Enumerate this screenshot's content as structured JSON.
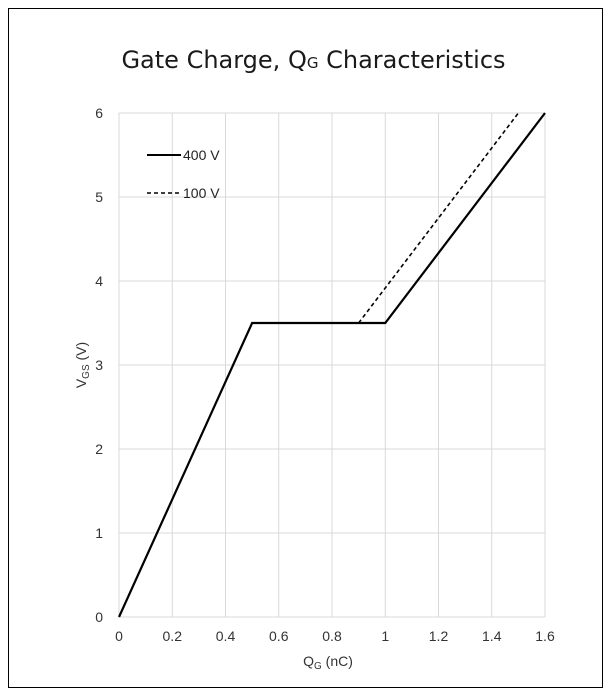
{
  "chart_data": {
    "type": "line",
    "title": "Gate Charge, Q",
    "title_subscript": "G",
    "title_suffix": " Characteristics",
    "xlabel": "Q",
    "xlabel_subscript": "G",
    "xlabel_suffix": " (nC)",
    "ylabel": "V",
    "ylabel_subscript": "GS",
    "ylabel_suffix": " (V)",
    "xlim": [
      0,
      1.6
    ],
    "ylim": [
      0,
      6
    ],
    "x_ticks": [
      0,
      0.2,
      0.4,
      0.6,
      0.8,
      1,
      1.2,
      1.4,
      1.6
    ],
    "x_tick_labels": [
      "0",
      "0.2",
      "0.4",
      "0.6",
      "0.8",
      "1",
      "1.2",
      "1.4",
      "1.6"
    ],
    "y_ticks": [
      0,
      1,
      2,
      3,
      4,
      5,
      6
    ],
    "y_tick_labels": [
      "0",
      "1",
      "2",
      "3",
      "4",
      "5",
      "6"
    ],
    "grid": true,
    "legend_position": "top-left",
    "series": [
      {
        "name": "400 V",
        "style": "solid",
        "color": "#000000",
        "x": [
          0,
          0.5,
          1.0,
          1.6
        ],
        "y": [
          0,
          3.5,
          3.5,
          6.0
        ]
      },
      {
        "name": "100 V",
        "style": "dashed",
        "color": "#000000",
        "x": [
          0.9,
          1.5
        ],
        "y": [
          3.5,
          6.0
        ]
      }
    ]
  }
}
